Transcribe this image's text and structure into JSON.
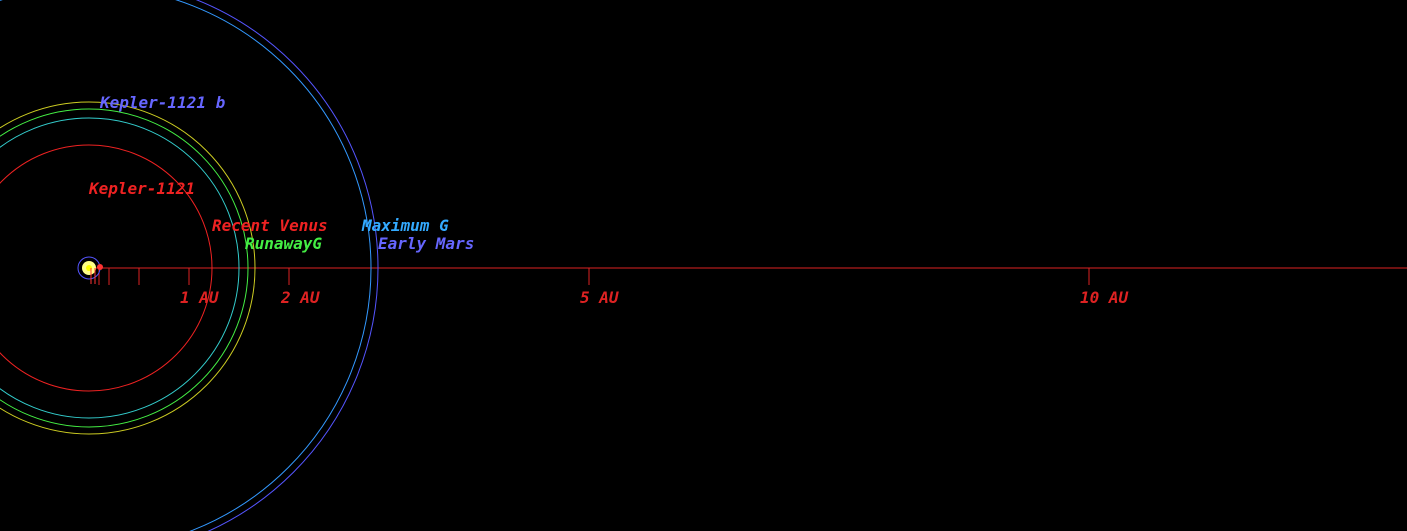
{
  "colors": {
    "background": "#000000",
    "axis": "#dd2222",
    "star_glow": "#ffff88",
    "star_core": "#ffff00",
    "star_ring": "#5555ff",
    "planet_marker": "#ff3333"
  },
  "axis_labels": [
    "1 AU",
    "2 AU",
    "5 AU",
    "10 AU"
  ],
  "objects": [
    {
      "label": "Kepler-1121",
      "color": "#ee2222"
    },
    {
      "label": "Kepler-1121 b",
      "color": "#6666ff"
    }
  ],
  "habitable_zone_limits": [
    {
      "label": "Recent Venus",
      "color": "#ee2222"
    },
    {
      "label": "RunawayG",
      "color": "#44ee44"
    },
    {
      "label": "Maximum G",
      "color": "#33aaff"
    },
    {
      "label": "Early Mars",
      "color": "#6666ff"
    }
  ]
}
